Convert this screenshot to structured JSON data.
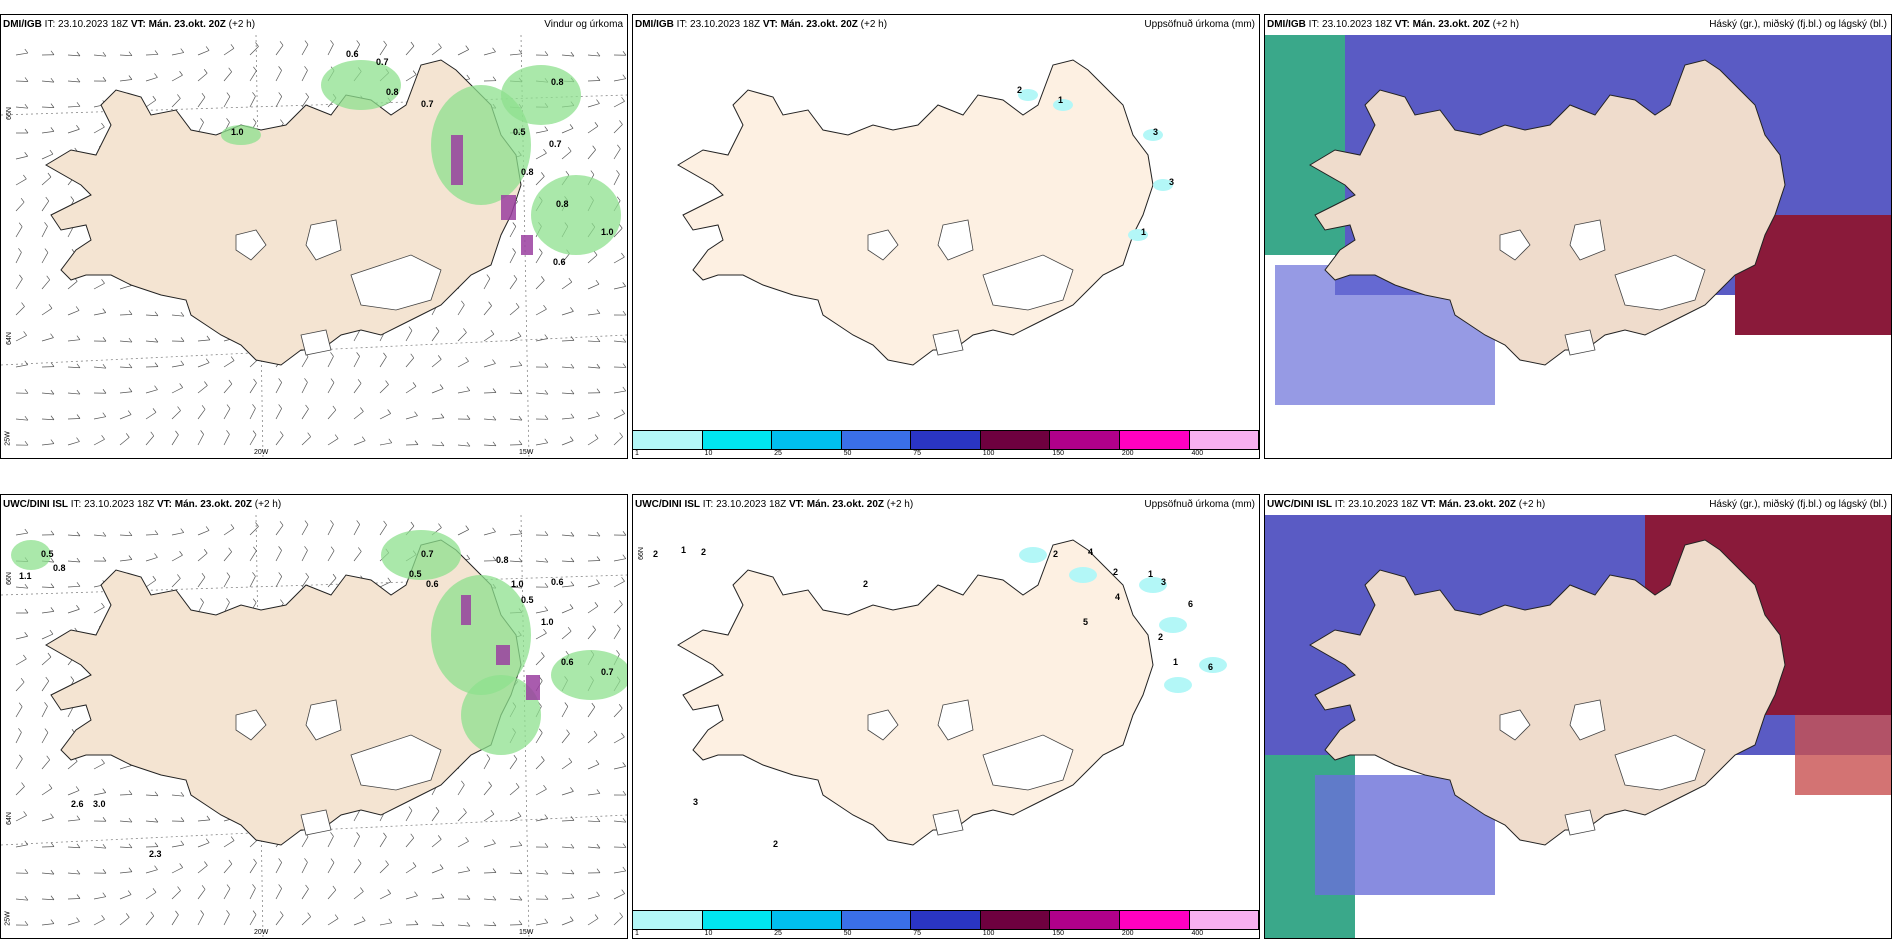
{
  "panels": [
    {
      "model": "DMI/IGB",
      "it": "IT: 23.10.2023 18Z",
      "vt_label": "VT:",
      "vt": "Mán. 23.okt. 20Z",
      "lead": "(+2 h)",
      "label": "Vindur og úrkoma",
      "type": "wind"
    },
    {
      "model": "DMI/IGB",
      "it": "IT: 23.10.2023 18Z",
      "vt_label": "VT:",
      "vt": "Mán. 23.okt. 20Z",
      "lead": "(+2 h)",
      "label": "Uppsöfnuð úrkoma (mm)",
      "type": "accum"
    },
    {
      "model": "DMI/IGB",
      "it": "IT: 23.10.2023 18Z",
      "vt_label": "VT:",
      "vt": "Mán. 23.okt. 20Z",
      "lead": "(+2 h)",
      "label": "Háský (gr.), miðský (fj.bl.) og lágský (bl.)",
      "type": "cloud"
    },
    {
      "model": "UWC/DINI ISL",
      "it": "IT: 23.10.2023 18Z",
      "vt_label": "VT:",
      "vt": "Mán. 23.okt. 20Z",
      "lead": "(+2 h)",
      "label": "",
      "type": "wind"
    },
    {
      "model": "UWC/DINI ISL",
      "it": "IT: 23.10.2023 18Z",
      "vt_label": "VT:",
      "vt": "Mán. 23.okt. 20Z",
      "lead": "(+2 h)",
      "label": "Uppsöfnuð úrkoma (mm)",
      "type": "accum"
    },
    {
      "model": "UWC/DINI ISL",
      "it": "IT: 23.10.2023 18Z",
      "vt_label": "VT:",
      "vt": "Mán. 23.okt. 20Z",
      "lead": "(+2 h)",
      "label": "Háský (gr.), miðský (fj.bl.) og lágský (bl.)",
      "type": "cloud"
    }
  ],
  "grid_labels": {
    "lat66": "66N",
    "lat64": "64N",
    "lon25": "25W",
    "lon20": "20W",
    "lon15": "15W"
  },
  "legend": {
    "ticks": [
      "1",
      "10",
      "25",
      "50",
      "75",
      "100",
      "150",
      "200",
      "400"
    ],
    "colors": [
      "#b3f7f7",
      "#00e6f0",
      "#00bfef",
      "#3a6fe8",
      "#2a35c4",
      "#6e003f",
      "#b0008a",
      "#ff00c0",
      "#f7b0f0"
    ]
  },
  "wind_labels_top": [
    {
      "t": "0.6"
    },
    {
      "t": "0.7"
    },
    {
      "t": "0.8"
    },
    {
      "t": "0.7"
    },
    {
      "t": "1.0"
    },
    {
      "t": "0.8"
    },
    {
      "t": "0.5"
    },
    {
      "t": "0.7"
    },
    {
      "t": "0.8"
    },
    {
      "t": "0.8"
    },
    {
      "t": "1.0"
    },
    {
      "t": "0.6"
    }
  ],
  "wind_labels_bottom": [
    {
      "t": "0.5"
    },
    {
      "t": "0.8"
    },
    {
      "t": "1.1"
    },
    {
      "t": "0.7"
    },
    {
      "t": "0.5"
    },
    {
      "t": "0.6"
    },
    {
      "t": "0.8"
    },
    {
      "t": "1.0"
    },
    {
      "t": "0.5"
    },
    {
      "t": "0.6"
    },
    {
      "t": "1.0"
    },
    {
      "t": "0.6"
    },
    {
      "t": "0.7"
    },
    {
      "t": "2.6"
    },
    {
      "t": "3.0"
    },
    {
      "t": "2.3"
    }
  ],
  "accum_labels_top": [
    {
      "t": "2"
    },
    {
      "t": "1"
    },
    {
      "t": "3"
    },
    {
      "t": "3"
    },
    {
      "t": "1"
    }
  ],
  "accum_labels_bottom": [
    {
      "t": "2"
    },
    {
      "t": "1"
    },
    {
      "t": "2"
    },
    {
      "t": "2"
    },
    {
      "t": "2"
    },
    {
      "t": "4"
    },
    {
      "t": "2"
    },
    {
      "t": "1"
    },
    {
      "t": "3"
    },
    {
      "t": "4"
    },
    {
      "t": "5"
    },
    {
      "t": "6"
    },
    {
      "t": "2"
    },
    {
      "t": "1"
    },
    {
      "t": "6"
    },
    {
      "t": "3"
    },
    {
      "t": "2"
    }
  ],
  "colors": {
    "land": "#f4e4d2",
    "land_cloud": "#efdccc",
    "glacier": "#ffffff",
    "purple_cloud": "#5a5bc4",
    "maroon_cloud": "#8a1a3a",
    "teal_cloud": "#3aa88a",
    "green_precip": "#8ee08e",
    "accum_land": "#fdf0e2"
  }
}
